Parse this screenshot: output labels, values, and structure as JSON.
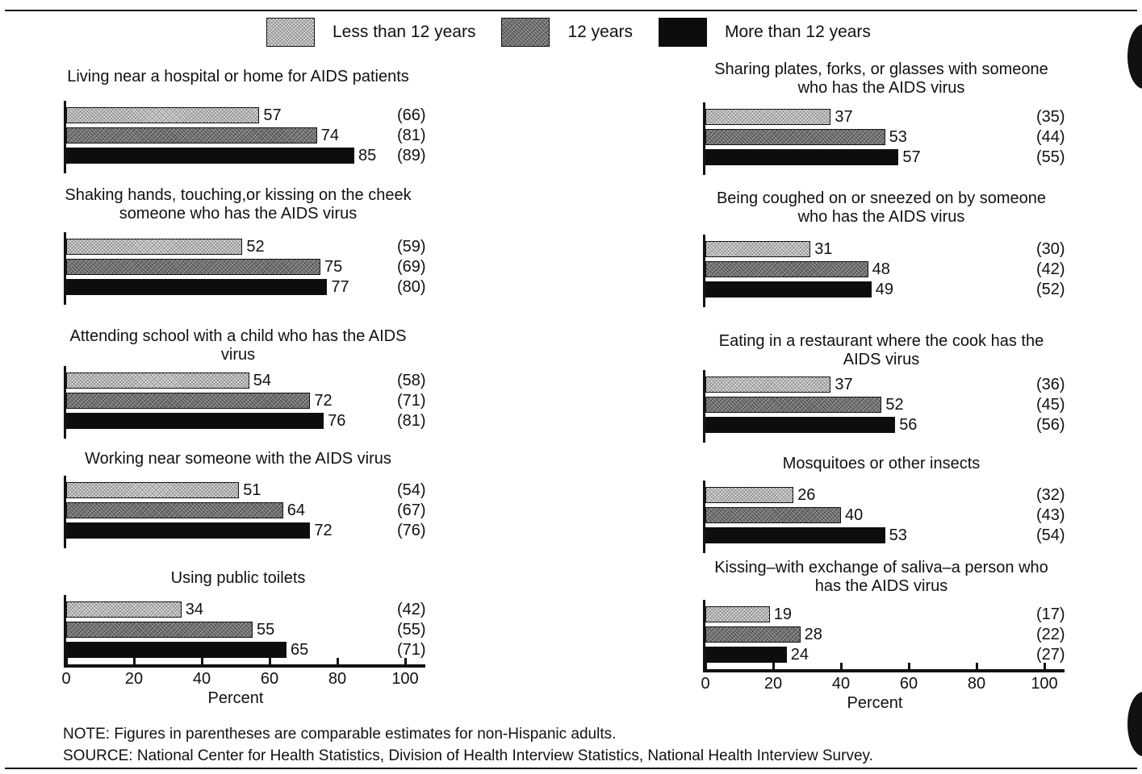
{
  "colors": {
    "less_than_12": "#dcdcdc",
    "twelve": "#555555",
    "more_than_12": "#0d0d0d",
    "axis": "#111111"
  },
  "legend": [
    "Less than 12 years",
    "12 years",
    "More than 12 years"
  ],
  "axis": {
    "ticks": [
      "0",
      "20",
      "40",
      "60",
      "80",
      "100"
    ],
    "label": "Percent"
  },
  "chart_data": {
    "type": "bar",
    "orientation": "horizontal",
    "xlabel": "Percent",
    "xlim": [
      0,
      100
    ],
    "series_names": [
      "Less than 12 years",
      "12 years",
      "More than 12 years"
    ],
    "panels": [
      {
        "title": "Living near a hospital or home for AIDS patients",
        "values": [
          57,
          74,
          85
        ],
        "comparable": [
          "(66)",
          "(81)",
          "(89)"
        ]
      },
      {
        "title": "Shaking hands, touching,or kissing on the cheek someone who has the AIDS virus",
        "values": [
          52,
          75,
          77
        ],
        "comparable": [
          "(59)",
          "(69)",
          "(80)"
        ]
      },
      {
        "title": "Attending school with a child who has the AIDS virus",
        "values": [
          54,
          72,
          76
        ],
        "comparable": [
          "(58)",
          "(71)",
          "(81)"
        ]
      },
      {
        "title": "Working near someone with the AIDS virus",
        "values": [
          51,
          64,
          72
        ],
        "comparable": [
          "(54)",
          "(67)",
          "(76)"
        ]
      },
      {
        "title": "Using public toilets",
        "values": [
          34,
          55,
          65
        ],
        "comparable": [
          "(42)",
          "(55)",
          "(71)"
        ]
      },
      {
        "title": "Sharing plates, forks, or glasses with someone who has the AIDS virus",
        "values": [
          37,
          53,
          57
        ],
        "comparable": [
          "(35)",
          "(44)",
          "(55)"
        ]
      },
      {
        "title": "Being coughed on or sneezed on by someone who has the AIDS virus",
        "values": [
          31,
          48,
          49
        ],
        "comparable": [
          "(30)",
          "(42)",
          "(52)"
        ]
      },
      {
        "title": "Eating in a restaurant where the cook has the AIDS virus",
        "values": [
          37,
          52,
          56
        ],
        "comparable": [
          "(36)",
          "(45)",
          "(56)"
        ]
      },
      {
        "title": "Mosquitoes or other insects",
        "values": [
          26,
          40,
          53
        ],
        "comparable": [
          "(32)",
          "(43)",
          "(54)"
        ]
      },
      {
        "title": "Kissing–with exchange of saliva–a person who has the AIDS virus",
        "values": [
          19,
          28,
          24
        ],
        "comparable": [
          "(17)",
          "(22)",
          "(27)"
        ]
      }
    ]
  },
  "footnotes": {
    "note": "NOTE: Figures in parentheses are comparable estimates for non-Hispanic adults.",
    "source": "SOURCE: National Center for Health Statistics, Division of Health Interview Statistics, National Health Interview Survey."
  }
}
